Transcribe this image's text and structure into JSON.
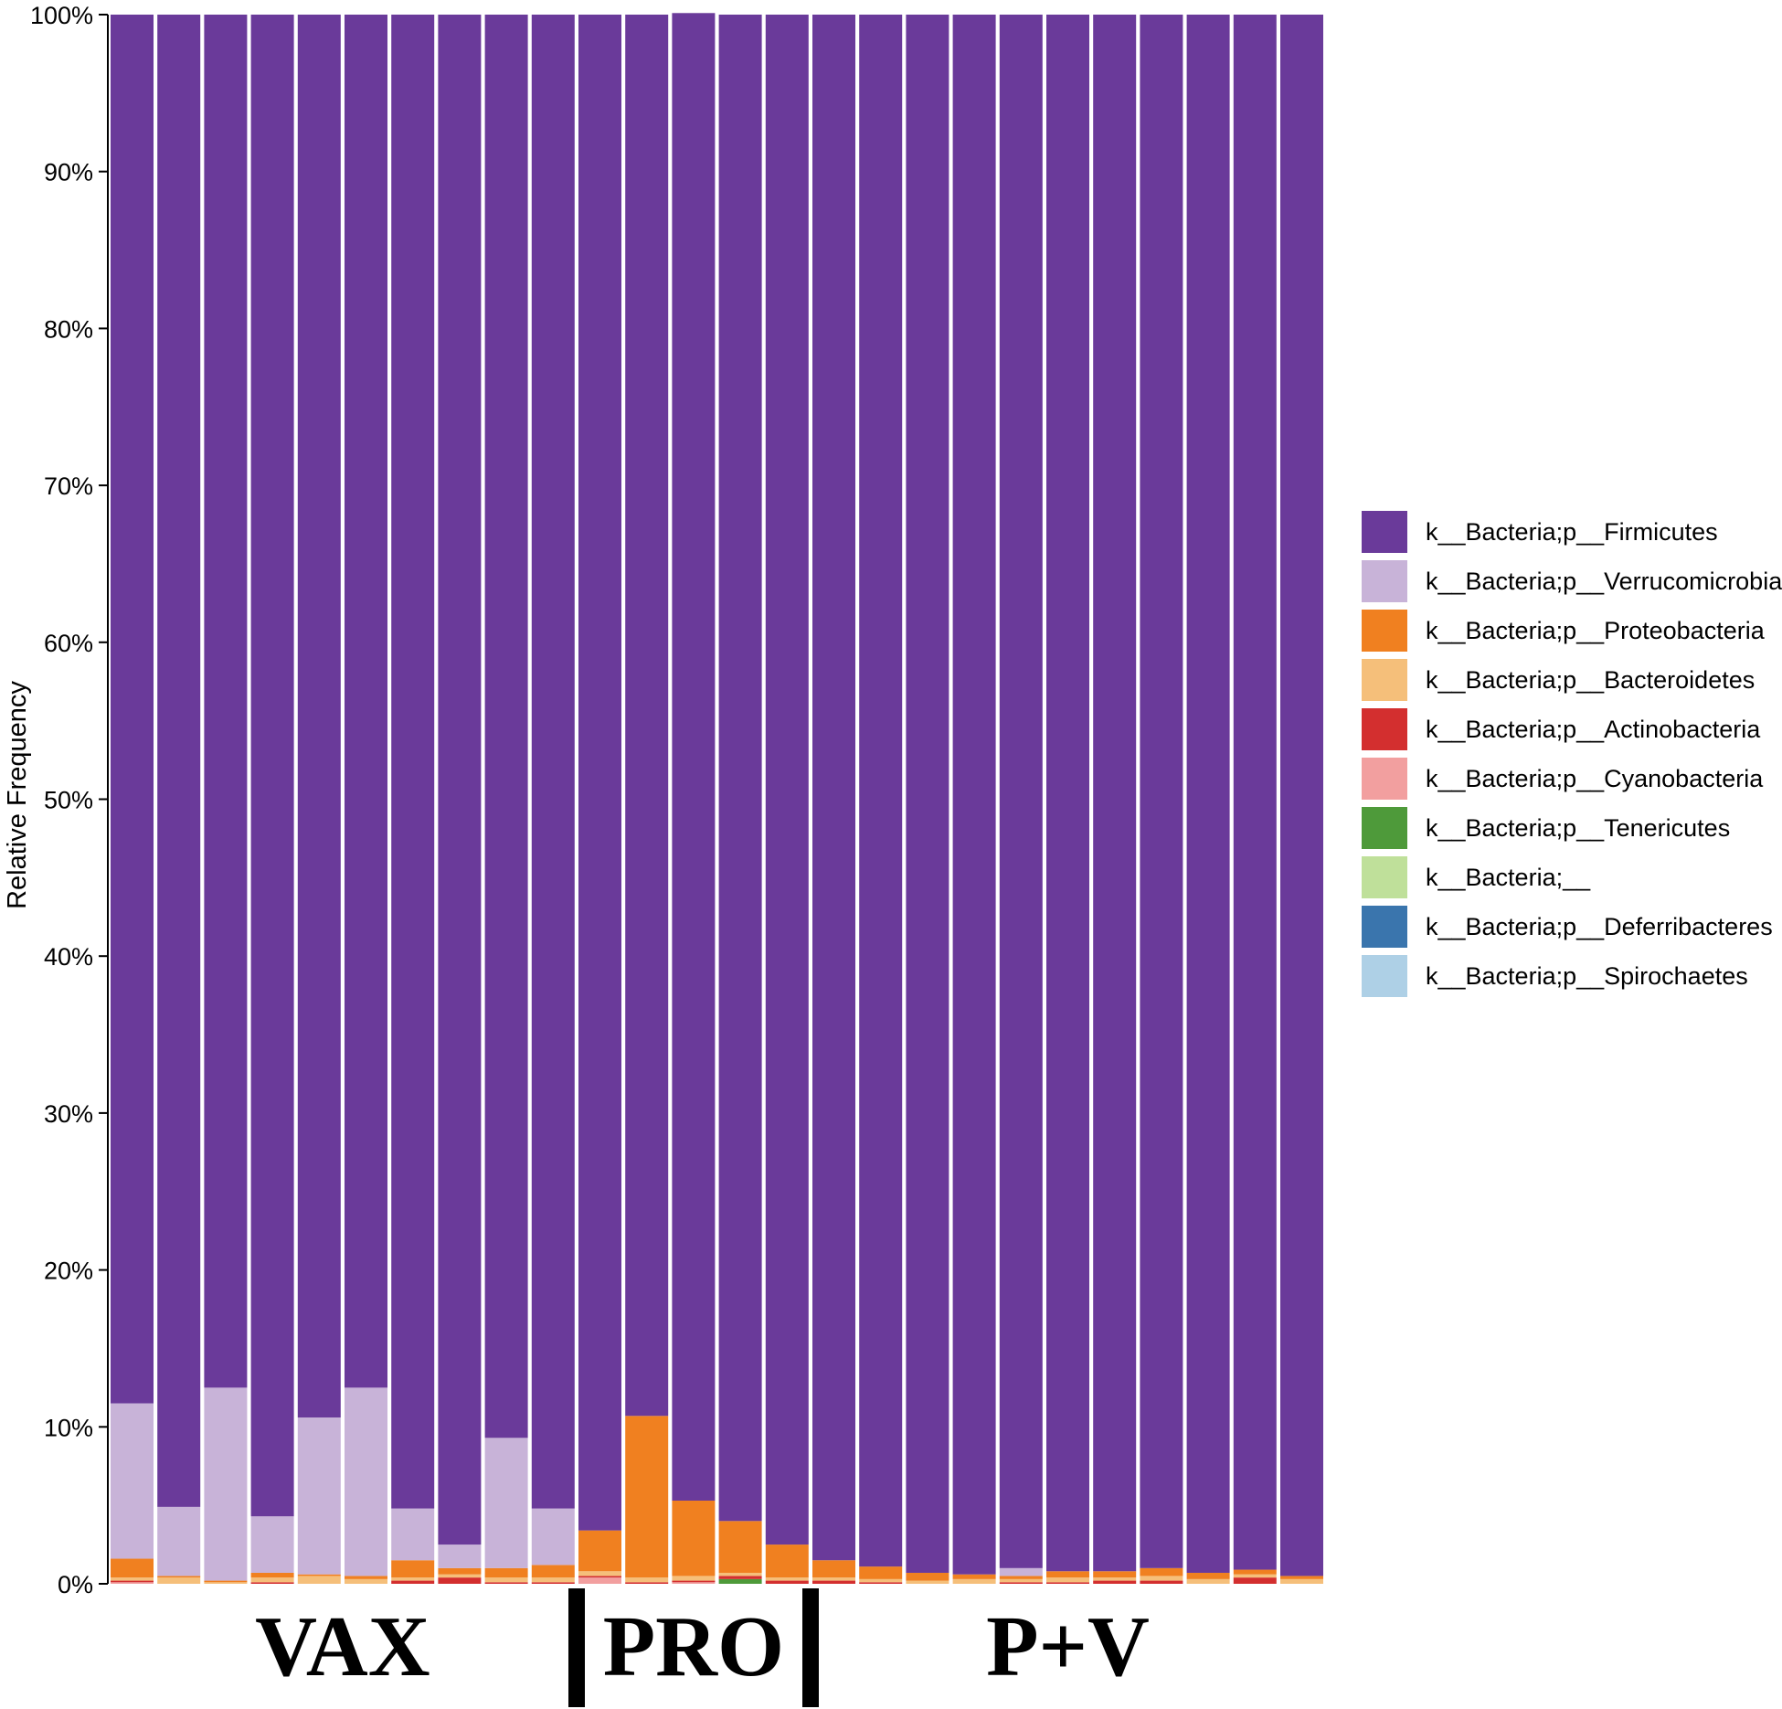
{
  "chart_data": {
    "type": "bar",
    "stacked": true,
    "ylabel": "Relative Frequency",
    "ylim": [
      0,
      100
    ],
    "y_ticks": [
      "0%",
      "10%",
      "20%",
      "30%",
      "40%",
      "50%",
      "60%",
      "70%",
      "80%",
      "90%",
      "100%"
    ],
    "grid": false,
    "legend_position": "right",
    "group_labels": [
      "VAX",
      "PRO",
      "P+V"
    ],
    "group_bar_counts": [
      10,
      5,
      11
    ],
    "series": [
      {
        "name": "k__Bacteria;p__Firmicutes",
        "color": "#6a3a9a",
        "values": [
          88.5,
          95.1,
          87.5,
          95.7,
          89.4,
          87.5,
          95.2,
          97.5,
          90.7,
          95.2,
          96.6,
          89.3,
          94.8,
          96.0,
          97.5,
          98.5,
          98.9,
          99.3,
          99.4,
          99.0,
          99.2,
          99.2,
          99.0,
          99.3,
          99.1,
          99.5
        ]
      },
      {
        "name": "k__Bacteria;p__Verrucomicrobia",
        "color": "#c8b3d8",
        "values": [
          9.9,
          4.4,
          12.3,
          3.6,
          10.0,
          12.0,
          3.3,
          1.5,
          8.3,
          3.6,
          0.0,
          0.0,
          0.0,
          0.0,
          0.0,
          0.0,
          0.0,
          0.0,
          0.0,
          0.5,
          0.0,
          0.0,
          0.0,
          0.0,
          0.0,
          0.0
        ]
      },
      {
        "name": "k__Bacteria;p__Proteobacteria",
        "color": "#f08020",
        "values": [
          1.2,
          0.1,
          0.1,
          0.3,
          0.1,
          0.2,
          1.1,
          0.4,
          0.6,
          0.8,
          2.6,
          10.3,
          4.8,
          3.3,
          2.1,
          1.1,
          0.8,
          0.5,
          0.3,
          0.2,
          0.4,
          0.4,
          0.5,
          0.4,
          0.3,
          0.2
        ]
      },
      {
        "name": "k__Bacteria;p__Bacteroidetes",
        "color": "#f5bf7a",
        "values": [
          0.2,
          0.4,
          0.1,
          0.3,
          0.5,
          0.3,
          0.2,
          0.2,
          0.3,
          0.3,
          0.3,
          0.3,
          0.3,
          0.2,
          0.2,
          0.2,
          0.2,
          0.2,
          0.3,
          0.2,
          0.3,
          0.2,
          0.3,
          0.3,
          0.2,
          0.3
        ]
      },
      {
        "name": "k__Bacteria;p__Actinobacteria",
        "color": "#d32f2f",
        "values": [
          0.1,
          0.0,
          0.0,
          0.1,
          0.0,
          0.0,
          0.2,
          0.4,
          0.1,
          0.1,
          0.1,
          0.1,
          0.1,
          0.2,
          0.2,
          0.2,
          0.1,
          0.0,
          0.0,
          0.1,
          0.1,
          0.2,
          0.2,
          0.0,
          0.4,
          0.0
        ]
      },
      {
        "name": "k__Bacteria;p__Cyanobacteria",
        "color": "#f29f9f",
        "values": [
          0.1,
          0.0,
          0.0,
          0.0,
          0.0,
          0.0,
          0.0,
          0.0,
          0.0,
          0.0,
          0.4,
          0.0,
          0.1,
          0.0,
          0.0,
          0.0,
          0.0,
          0.0,
          0.0,
          0.0,
          0.0,
          0.0,
          0.0,
          0.0,
          0.0,
          0.0
        ]
      },
      {
        "name": "k__Bacteria;p__Tenericutes",
        "color": "#4e9a3a",
        "values": [
          0.0,
          0.0,
          0.0,
          0.0,
          0.0,
          0.0,
          0.0,
          0.0,
          0.0,
          0.0,
          0.0,
          0.0,
          0.0,
          0.3,
          0.0,
          0.0,
          0.0,
          0.0,
          0.0,
          0.0,
          0.0,
          0.0,
          0.0,
          0.0,
          0.0,
          0.0
        ]
      },
      {
        "name": "k__Bacteria;__",
        "color": "#bfe09a",
        "values": [
          0,
          0,
          0,
          0,
          0,
          0,
          0,
          0,
          0,
          0,
          0,
          0,
          0,
          0,
          0,
          0,
          0,
          0,
          0,
          0,
          0,
          0,
          0,
          0,
          0,
          0
        ]
      },
      {
        "name": "k__Bacteria;p__Deferribacteres",
        "color": "#3a75ad",
        "values": [
          0,
          0,
          0,
          0,
          0,
          0,
          0,
          0,
          0,
          0,
          0,
          0,
          0,
          0,
          0,
          0,
          0,
          0,
          0,
          0,
          0,
          0,
          0,
          0,
          0,
          0
        ]
      },
      {
        "name": "k__Bacteria;p__Spirochaetes",
        "color": "#aed0e6",
        "values": [
          0,
          0,
          0,
          0,
          0,
          0,
          0,
          0,
          0,
          0,
          0,
          0,
          0,
          0,
          0,
          0,
          0,
          0,
          0,
          0,
          0,
          0,
          0,
          0,
          0,
          0
        ]
      }
    ]
  }
}
